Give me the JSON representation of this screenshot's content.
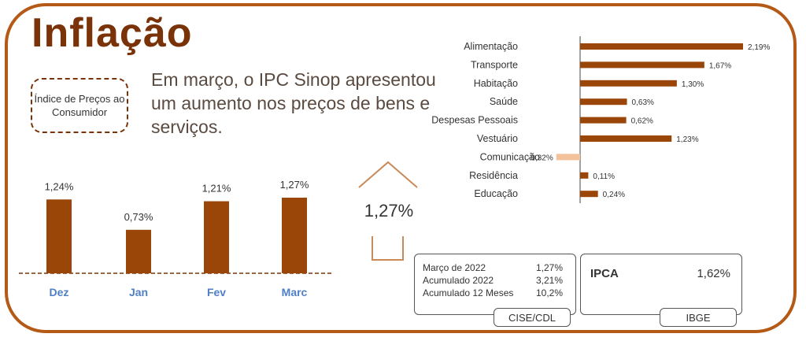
{
  "title": "Inflação",
  "badge": "Índice de Preços ao Consumidor",
  "headline": "Em março, o IPC Sinop apresentou um aumento nos preços de bens e serviços.",
  "highlight": "1,27%",
  "summary": {
    "rows": [
      {
        "label": "Março de 2022",
        "value": "1,27%"
      },
      {
        "label": "Acumulado 2022",
        "value": "3,21%"
      },
      {
        "label": "Acumulado 12 Meses",
        "value": "10,2%"
      }
    ],
    "source": "CISE/CDL"
  },
  "ipca": {
    "label": "IPCA",
    "value": "1,62%",
    "source": "IBGE"
  },
  "colors": {
    "primary": "#9b4609",
    "negative": "#f3c29a",
    "frame": "#b45a16",
    "month_label": "#4f7fc4"
  },
  "chart_data": [
    {
      "type": "bar",
      "categories": [
        "Dez",
        "Jan",
        "Fev",
        "Marc"
      ],
      "values": [
        1.24,
        0.73,
        1.21,
        1.27
      ],
      "labels": [
        "1,24%",
        "0,73%",
        "1,21%",
        "1,27%"
      ],
      "ylim": [
        0,
        1.5
      ]
    },
    {
      "type": "bar",
      "orientation": "horizontal",
      "categories": [
        "Alimentação",
        "Transporte",
        "Habitação",
        "Saúde",
        "Despesas Pessoais",
        "Vestuário",
        "Comunicação",
        "Residência",
        "Educação"
      ],
      "values": [
        2.19,
        1.67,
        1.3,
        0.63,
        0.62,
        1.23,
        -0.32,
        0.11,
        0.24
      ],
      "labels": [
        "2,19%",
        "1,67%",
        "1,30%",
        "0,63%",
        "0,62%",
        "1,23%",
        "-0,32%",
        "0,11%",
        "0,24%"
      ],
      "xlim": [
        -0.32,
        2.19
      ]
    }
  ]
}
